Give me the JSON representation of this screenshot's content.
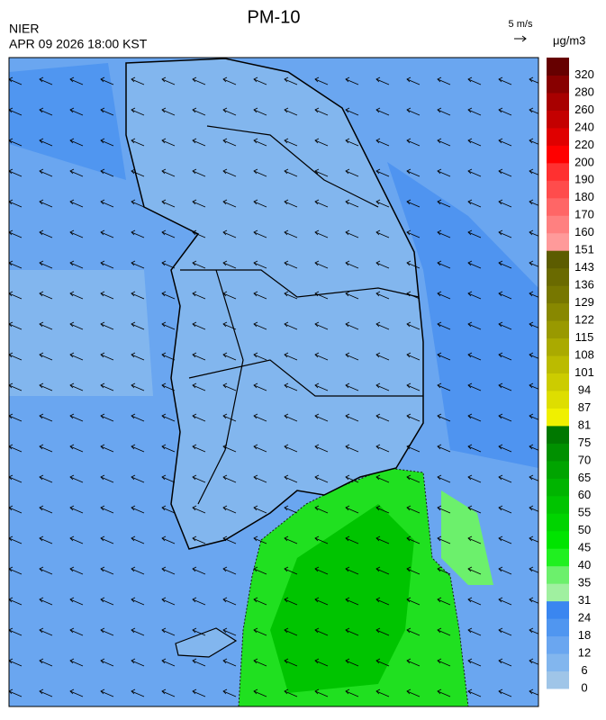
{
  "header": {
    "title": "PM-10",
    "agency": "NIER",
    "datetime": "APR 09 2026 18:00 KST",
    "wind_scale": "5 m/s"
  },
  "colorbar": {
    "unit": "μg/m3",
    "legend": [
      {
        "value": 0,
        "color": "#9fc5e8"
      },
      {
        "value": 6,
        "color": "#82b6ee"
      },
      {
        "value": 12,
        "color": "#6aa6f0"
      },
      {
        "value": 18,
        "color": "#5096f0"
      },
      {
        "value": 24,
        "color": "#3a86f0"
      },
      {
        "value": 31,
        "color": "#a0f0a0"
      },
      {
        "value": 35,
        "color": "#6cf06c"
      },
      {
        "value": 40,
        "color": "#20f020"
      },
      {
        "value": 45,
        "color": "#00e400"
      },
      {
        "value": 50,
        "color": "#00d400"
      },
      {
        "value": 55,
        "color": "#00c400"
      },
      {
        "value": 60,
        "color": "#00b400"
      },
      {
        "value": 65,
        "color": "#00a400"
      },
      {
        "value": 70,
        "color": "#009000"
      },
      {
        "value": 75,
        "color": "#007800"
      },
      {
        "value": 81,
        "color": "#f0f000"
      },
      {
        "value": 87,
        "color": "#dede00"
      },
      {
        "value": 94,
        "color": "#cccc00"
      },
      {
        "value": 101,
        "color": "#bbbb00"
      },
      {
        "value": 108,
        "color": "#aaaa00"
      },
      {
        "value": 115,
        "color": "#999900"
      },
      {
        "value": 122,
        "color": "#888800"
      },
      {
        "value": 129,
        "color": "#777700"
      },
      {
        "value": 136,
        "color": "#6a6a00"
      },
      {
        "value": 143,
        "color": "#5c5c00"
      },
      {
        "value": 151,
        "color": "#ff9a9a"
      },
      {
        "value": 160,
        "color": "#ff8080"
      },
      {
        "value": 170,
        "color": "#ff6666"
      },
      {
        "value": 180,
        "color": "#ff4c4c"
      },
      {
        "value": 190,
        "color": "#ff3030"
      },
      {
        "value": 200,
        "color": "#ff0000"
      },
      {
        "value": 220,
        "color": "#e00000"
      },
      {
        "value": 240,
        "color": "#c40000"
      },
      {
        "value": 260,
        "color": "#a80000"
      },
      {
        "value": 280,
        "color": "#880000"
      },
      {
        "value": 320,
        "color": "#660000"
      }
    ]
  }
}
